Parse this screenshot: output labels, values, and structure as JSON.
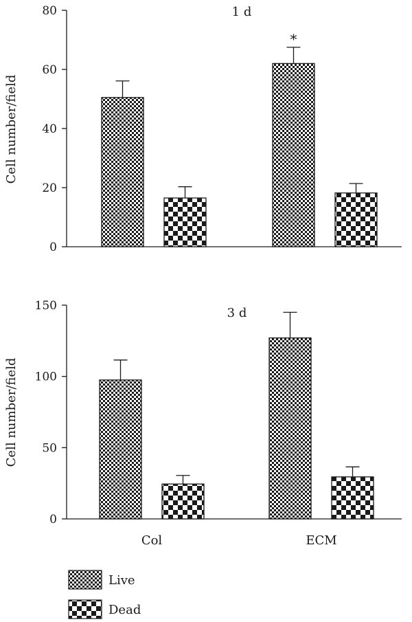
{
  "chart_data": [
    {
      "type": "bar",
      "title": "1 d",
      "xlabel": "",
      "ylabel": "Cell number/field",
      "ylim": [
        0,
        80
      ],
      "yticks": [
        0,
        20,
        40,
        60,
        80
      ],
      "categories": [
        "Col",
        "ECM"
      ],
      "series": [
        {
          "name": "Live",
          "values": [
            50.5,
            62
          ],
          "errors": [
            5.6,
            5.5
          ]
        },
        {
          "name": "Dead",
          "values": [
            16.5,
            18.2
          ],
          "errors": [
            3.8,
            3.2
          ]
        }
      ],
      "annotations": [
        {
          "text": "*",
          "category": "ECM",
          "series": "Live"
        }
      ],
      "show_category_labels": false,
      "grid": false
    },
    {
      "type": "bar",
      "title": "3 d",
      "xlabel": "",
      "ylabel": "Cell number/field",
      "ylim": [
        0,
        150
      ],
      "yticks": [
        0,
        50,
        100,
        150
      ],
      "categories": [
        "Col",
        "ECM"
      ],
      "series": [
        {
          "name": "Live",
          "values": [
            97.5,
            127
          ],
          "errors": [
            14,
            18
          ]
        },
        {
          "name": "Dead",
          "values": [
            24.5,
            29.5
          ],
          "errors": [
            6,
            7
          ]
        }
      ],
      "annotations": [],
      "show_category_labels": true,
      "grid": false
    }
  ],
  "legend": {
    "placement": "bottom-left",
    "items": [
      {
        "label": "Live",
        "pattern": "fine-checker"
      },
      {
        "label": "Dead",
        "pattern": "coarse-checker"
      }
    ]
  }
}
